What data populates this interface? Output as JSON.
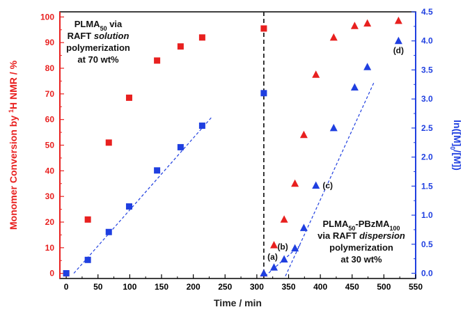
{
  "chart_data": {
    "type": "scatter",
    "xlabel": "Time / min",
    "ylabel_left_pre": "Monomer Conversion by ",
    "ylabel_left_sup": "1",
    "ylabel_left_post": "H NMR / %",
    "ylabel_right_pre": "ln([M]",
    "ylabel_right_sub": "0",
    "ylabel_right_post": "/[M])",
    "xlim": [
      -10,
      550
    ],
    "ylim_left": [
      -2,
      102
    ],
    "ylim_right": [
      -0.09,
      4.5
    ],
    "x_ticks": [
      0,
      50,
      100,
      150,
      200,
      250,
      300,
      350,
      400,
      450,
      500,
      550
    ],
    "y_left_ticks": [
      0,
      10,
      20,
      30,
      40,
      50,
      60,
      70,
      80,
      90,
      100
    ],
    "y_right_ticks": [
      "0.0",
      "0.5",
      "1.0",
      "1.5",
      "2.0",
      "2.5",
      "3.0",
      "3.5",
      "4.0",
      "4.5"
    ],
    "divider_x": 311,
    "colors": {
      "left_axis": "#e8201f",
      "right_axis": "#1f3fe0",
      "divider": "#222222"
    },
    "annotations": {
      "solution": [
        "PLMA|50| via",
        "RAFT *solution*",
        "polymerization",
        "at 70 wt%"
      ],
      "dispersion": [
        "PLMA|50|-PBzMA|100|",
        "via RAFT *dispersion*",
        "polymerization",
        "at 30 wt%"
      ]
    },
    "series": [
      {
        "marker": "square",
        "color": "#e8201f",
        "axis": "left",
        "x": [
          0,
          34,
          67,
          99,
          143,
          180,
          214
        ],
        "y": [
          0,
          21,
          51,
          68.5,
          83,
          88.5,
          92
        ]
      },
      {
        "marker": "square",
        "color": "#1f3fe0",
        "axis": "right",
        "x": [
          0,
          34,
          67,
          99,
          143,
          180,
          214
        ],
        "y": [
          0.0,
          0.23,
          0.71,
          1.15,
          1.77,
          2.17,
          2.54
        ]
      },
      {
        "marker": "square",
        "color": "#e8201f",
        "axis": "left",
        "x": [
          311
        ],
        "y": [
          95.5
        ]
      },
      {
        "marker": "square",
        "color": "#1f3fe0",
        "axis": "right",
        "x": [
          311
        ],
        "y": [
          3.1
        ]
      },
      {
        "marker": "triangle",
        "color": "#e8201f",
        "axis": "left",
        "x": [
          311,
          327,
          343,
          360,
          374,
          393,
          421,
          454,
          474,
          523
        ],
        "y": [
          0,
          11,
          21,
          35,
          54,
          77.5,
          92,
          96.5,
          97.5,
          98.5
        ]
      },
      {
        "marker": "triangle",
        "color": "#1f3fe0",
        "axis": "right",
        "x": [
          311,
          327,
          343,
          360,
          374,
          393,
          421,
          454,
          474,
          523
        ],
        "y": [
          0.0,
          0.1,
          0.24,
          0.43,
          0.78,
          1.51,
          2.5,
          3.2,
          3.55,
          4.0
        ]
      }
    ],
    "fit_lines": [
      {
        "color": "#1f3fe0",
        "axis": "right",
        "x": [
          12,
          230
        ],
        "y": [
          0.0,
          2.7
        ]
      },
      {
        "color": "#1f3fe0",
        "axis": "right",
        "x": [
          313,
          370
        ],
        "y": [
          -0.05,
          0.5
        ]
      },
      {
        "color": "#1f3fe0",
        "axis": "right",
        "x": [
          345,
          485
        ],
        "y": [
          -0.05,
          3.3
        ]
      }
    ],
    "point_labels": [
      {
        "text": "(a)",
        "x": 327,
        "y": 0.1
      },
      {
        "text": "(b)",
        "x": 343,
        "y": 0.24
      },
      {
        "text": "(c)",
        "x": 393,
        "y": 1.51
      },
      {
        "text": "(d)",
        "x": 523,
        "y": 4.0
      }
    ]
  }
}
